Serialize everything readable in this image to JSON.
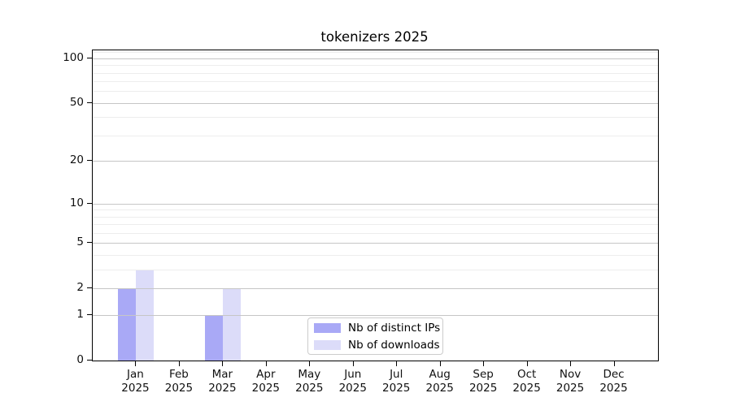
{
  "title": "tokenizers 2025",
  "chart_data": {
    "type": "bar",
    "title": "tokenizers 2025",
    "x_tick_labels": [
      {
        "month": "Jan",
        "year": "2025"
      },
      {
        "month": "Feb",
        "year": "2025"
      },
      {
        "month": "Mar",
        "year": "2025"
      },
      {
        "month": "Apr",
        "year": "2025"
      },
      {
        "month": "May",
        "year": "2025"
      },
      {
        "month": "Jun",
        "year": "2025"
      },
      {
        "month": "Jul",
        "year": "2025"
      },
      {
        "month": "Aug",
        "year": "2025"
      },
      {
        "month": "Sep",
        "year": "2025"
      },
      {
        "month": "Oct",
        "year": "2025"
      },
      {
        "month": "Nov",
        "year": "2025"
      },
      {
        "month": "Dec",
        "year": "2025"
      }
    ],
    "series": [
      {
        "name": "Nb of distinct IPs",
        "key": "distinct-ips",
        "color": "#a9a9f6",
        "values": [
          2,
          0,
          1,
          0,
          0,
          0,
          0,
          0,
          0,
          0,
          0,
          0
        ]
      },
      {
        "name": "Nb of downloads",
        "key": "downloads",
        "color": "#dcdcf9",
        "values": [
          3,
          0,
          2,
          0,
          0,
          0,
          0,
          0,
          0,
          0,
          0,
          0
        ]
      }
    ],
    "y_scale": "log1p",
    "ylim": [
      0,
      113
    ],
    "y_major_ticks": [
      0,
      1,
      2,
      5,
      10,
      20,
      50,
      100
    ],
    "y_minor_gridlines": [
      3,
      4,
      6,
      7,
      8,
      9,
      30,
      40,
      60,
      70,
      80,
      90,
      110
    ],
    "grid": true,
    "legend_position": "lower center",
    "colors": {
      "grid_major": "#c6c6c6",
      "grid_minor": "#ededed",
      "spine": "#000000",
      "tick_text": "#111111"
    }
  }
}
